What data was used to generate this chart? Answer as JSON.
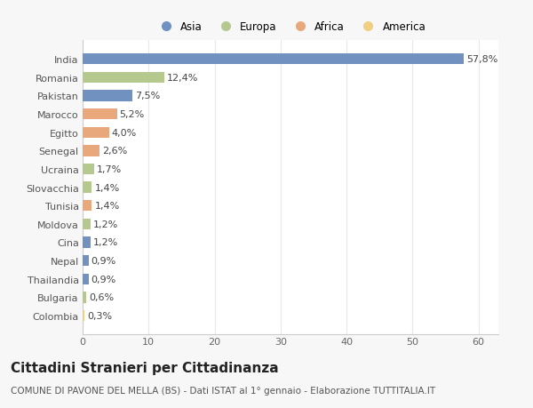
{
  "countries": [
    "India",
    "Romania",
    "Pakistan",
    "Marocco",
    "Egitto",
    "Senegal",
    "Ucraina",
    "Slovacchia",
    "Tunisia",
    "Moldova",
    "Cina",
    "Nepal",
    "Thailandia",
    "Bulgaria",
    "Colombia"
  ],
  "values": [
    57.8,
    12.4,
    7.5,
    5.2,
    4.0,
    2.6,
    1.7,
    1.4,
    1.4,
    1.2,
    1.2,
    0.9,
    0.9,
    0.6,
    0.3
  ],
  "labels": [
    "57,8%",
    "12,4%",
    "7,5%",
    "5,2%",
    "4,0%",
    "2,6%",
    "1,7%",
    "1,4%",
    "1,4%",
    "1,2%",
    "1,2%",
    "0,9%",
    "0,9%",
    "0,6%",
    "0,3%"
  ],
  "continents": [
    "Asia",
    "Europa",
    "Asia",
    "Africa",
    "Africa",
    "Africa",
    "Europa",
    "Europa",
    "Africa",
    "Europa",
    "Asia",
    "Asia",
    "Asia",
    "Europa",
    "America"
  ],
  "continent_colors": {
    "Asia": "#7191c0",
    "Europa": "#b5c98e",
    "Africa": "#e8a87c",
    "America": "#f0d080"
  },
  "legend_order": [
    "Asia",
    "Europa",
    "Africa",
    "America"
  ],
  "title": "Cittadini Stranieri per Cittadinanza",
  "subtitle": "COMUNE DI PAVONE DEL MELLA (BS) - Dati ISTAT al 1° gennaio - Elaborazione TUTTITALIA.IT",
  "xlim": [
    0,
    63
  ],
  "xticks": [
    0,
    10,
    20,
    30,
    40,
    50,
    60
  ],
  "plot_bg": "#ffffff",
  "fig_bg": "#f7f7f7",
  "bar_height": 0.6,
  "grid_color": "#e8e8e8",
  "label_fontsize": 8,
  "ytick_fontsize": 8,
  "xtick_fontsize": 8,
  "title_fontsize": 11,
  "subtitle_fontsize": 7.5
}
